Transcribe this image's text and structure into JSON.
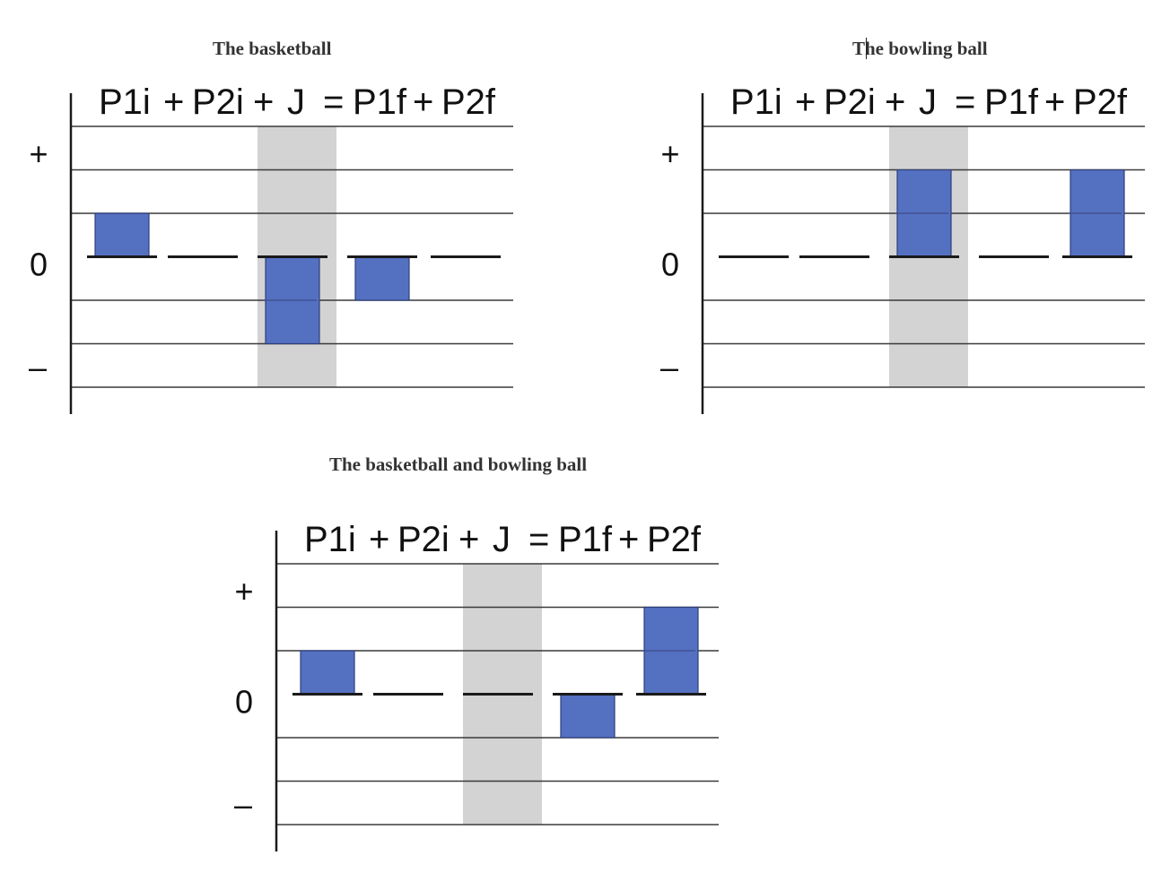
{
  "colors": {
    "bar": "#5470c1",
    "bar_border": "#2f3f7a",
    "impulse_band": "#d3d3d3",
    "grid": "#3a3a3a"
  },
  "axis_labels": {
    "plus": "+",
    "zero": "0",
    "minus": "–"
  },
  "equation_terms": [
    "P1i",
    "+",
    "P2i",
    "+",
    "J",
    "=",
    "P1f",
    "+",
    "P2f"
  ],
  "chart_data": [
    {
      "type": "bar",
      "title": "The basketball",
      "categories": [
        "P1i",
        "P2i",
        "J",
        "P1f",
        "P2f"
      ],
      "values": [
        1,
        0,
        -2,
        -1,
        0
      ],
      "ylim": [
        -3,
        3
      ],
      "highlighted_category": "J"
    },
    {
      "type": "bar",
      "title": "The bowling ball",
      "categories": [
        "P1i",
        "P2i",
        "J",
        "P1f",
        "P2f"
      ],
      "values": [
        0,
        0,
        2,
        0,
        2
      ],
      "ylim": [
        -3,
        3
      ],
      "highlighted_category": "J"
    },
    {
      "type": "bar",
      "title": "The basketball and bowling ball",
      "categories": [
        "P1i",
        "P2i",
        "J",
        "P1f",
        "P2f"
      ],
      "values": [
        1,
        0,
        0,
        -1,
        2
      ],
      "ylim": [
        -3,
        3
      ],
      "highlighted_category": "J"
    }
  ]
}
